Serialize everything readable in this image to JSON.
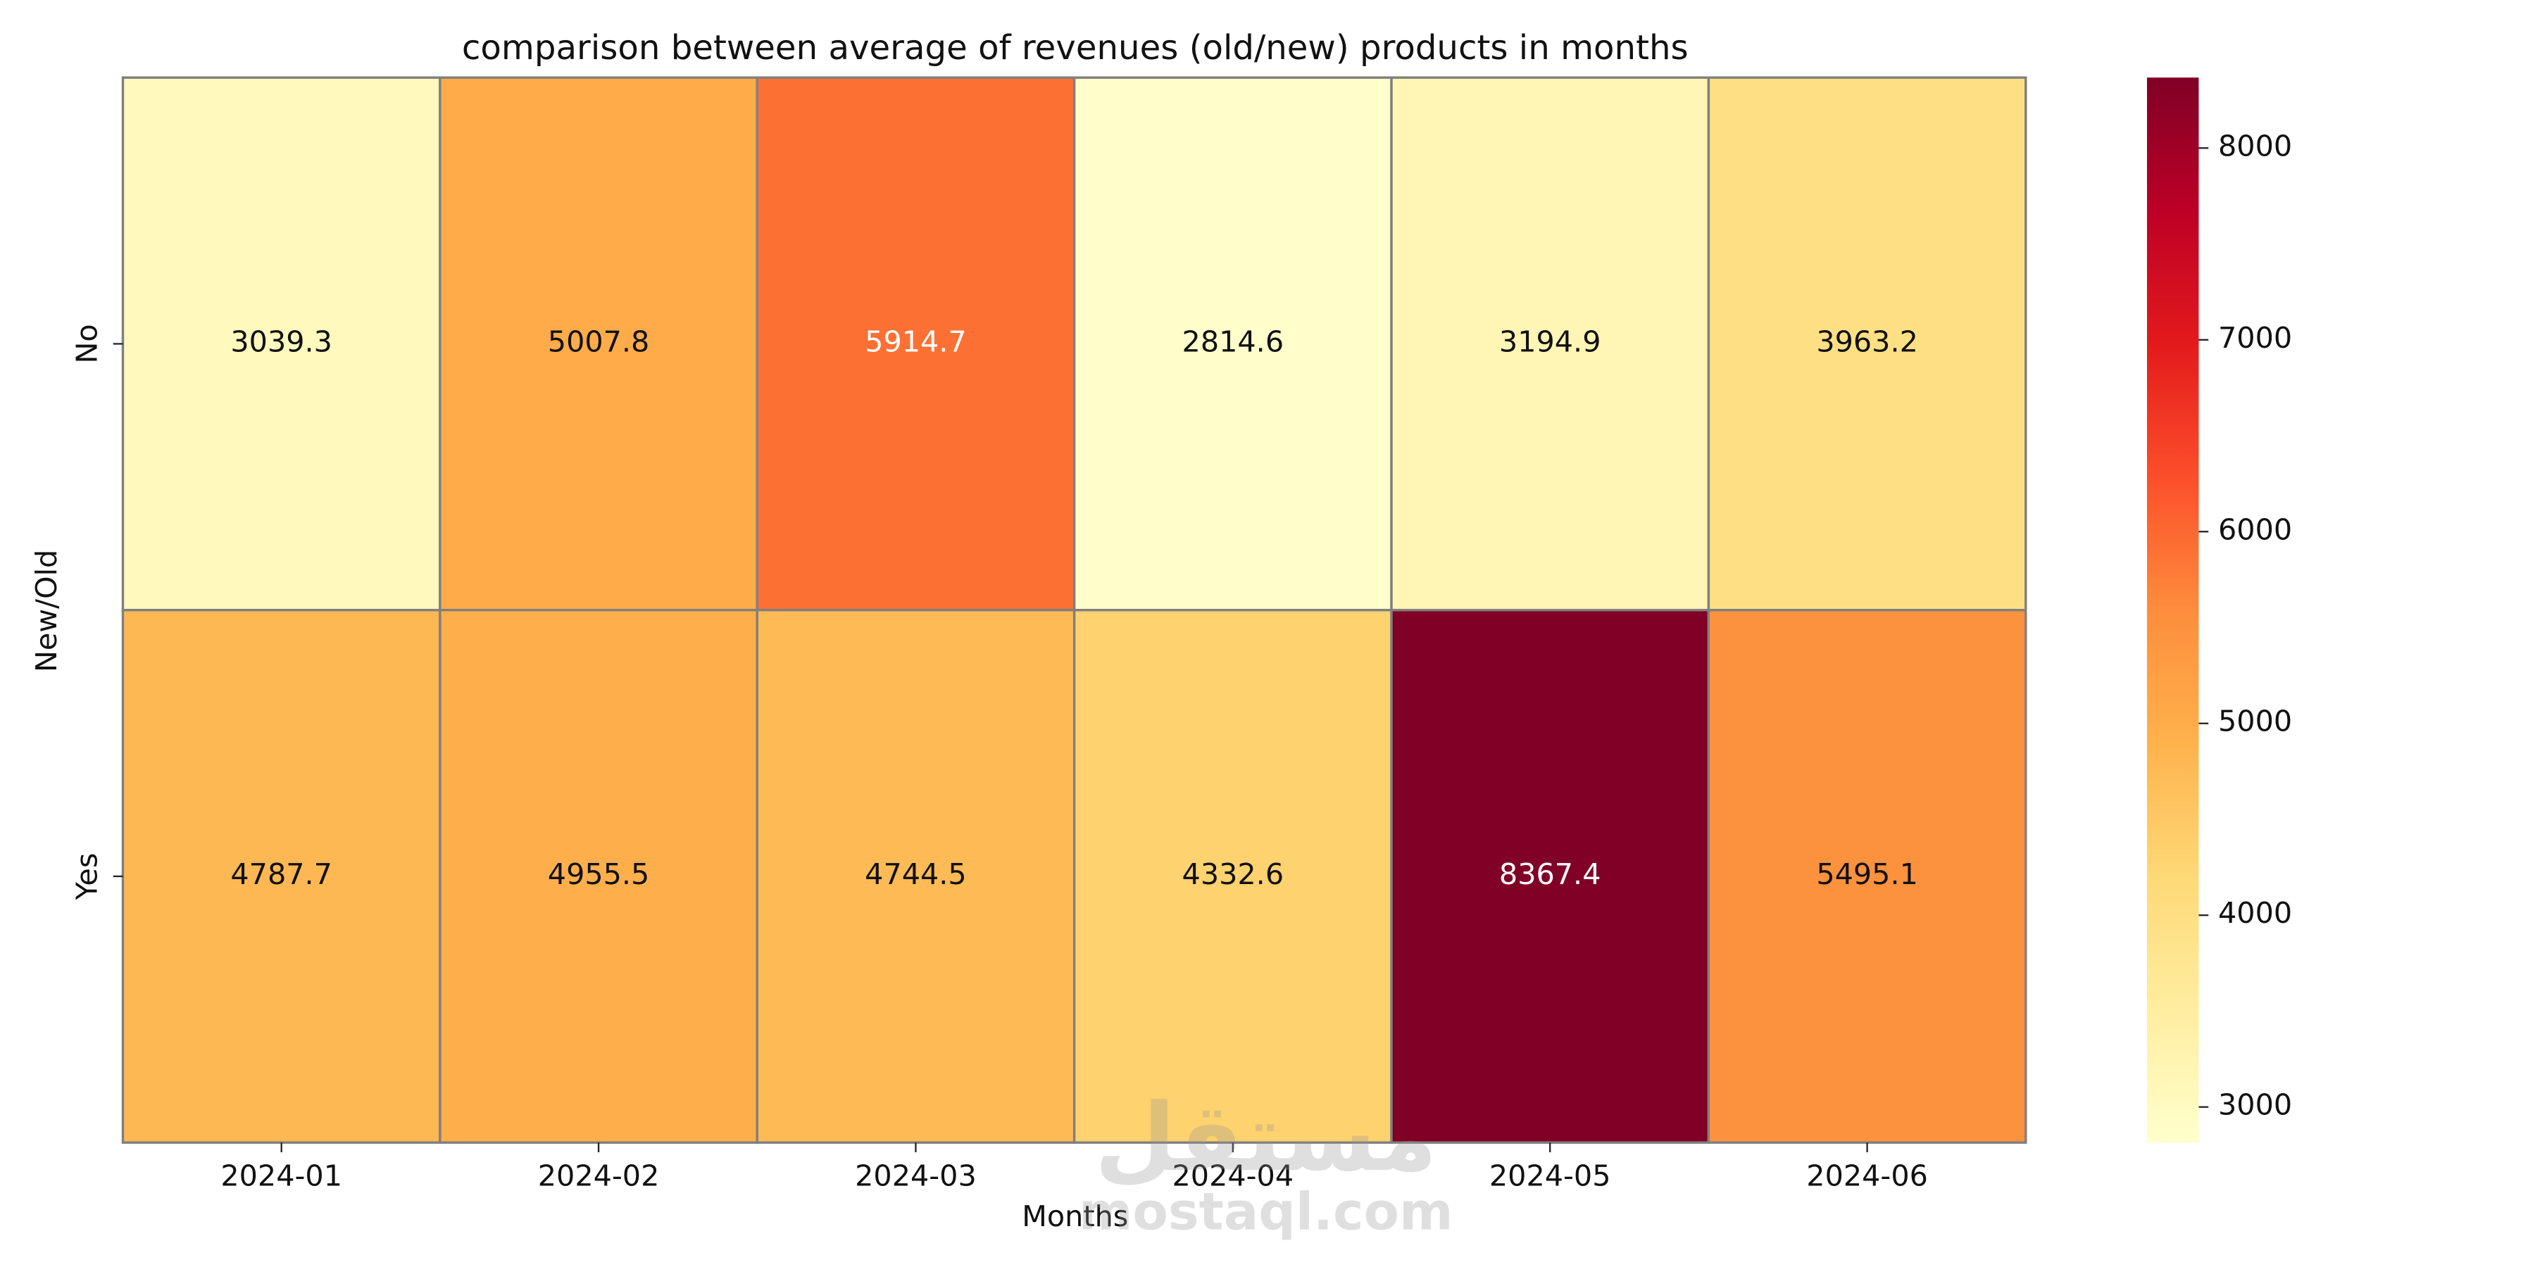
{
  "chart_data": {
    "type": "heatmap",
    "title": "comparison between average of revenues (old/new) products in months",
    "x_label": "Months",
    "y_label": "New/Old",
    "x_categories": [
      "2024-01",
      "2024-02",
      "2024-03",
      "2024-04",
      "2024-05",
      "2024-06"
    ],
    "y_categories": [
      "No",
      "Yes"
    ],
    "values": [
      [
        3039.3,
        5007.8,
        5914.7,
        2814.6,
        3194.9,
        3963.2
      ],
      [
        4787.7,
        4955.5,
        4744.5,
        4332.6,
        8367.4,
        5495.1
      ]
    ],
    "colormap": [
      "#ffffcc",
      "#ffeda0",
      "#fed976",
      "#feb24c",
      "#fd8d3c",
      "#fc4e2a",
      "#e31a1c",
      "#bd0026",
      "#800026"
    ],
    "clim": [
      2814.6,
      8367.4
    ],
    "cticks": [
      3000,
      4000,
      5000,
      6000,
      7000,
      8000
    ],
    "watermark": [
      "مستقل",
      "mostaql.com"
    ]
  }
}
